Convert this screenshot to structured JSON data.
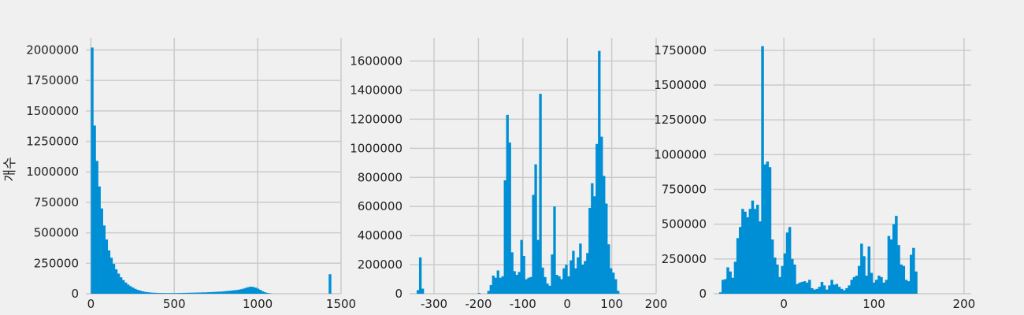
{
  "chart_data": [
    {
      "type": "bar",
      "title": "",
      "xlabel": "",
      "ylabel": "개수",
      "xlim": [
        -30,
        1500
      ],
      "ylim": [
        0,
        2100000
      ],
      "xticks": [
        0,
        500,
        1000,
        1500
      ],
      "yticks": [
        0,
        250000,
        500000,
        750000,
        1000000,
        1250000,
        1500000,
        1750000,
        2000000
      ],
      "grid": true,
      "bin_start": 0,
      "bin_width": 14.4,
      "values": [
        2020000,
        1380000,
        1090000,
        880000,
        700000,
        560000,
        445000,
        355000,
        295000,
        245000,
        200000,
        165000,
        135000,
        112000,
        92000,
        75000,
        62000,
        50000,
        40000,
        32000,
        26000,
        20000,
        16000,
        13000,
        11000,
        9000,
        8000,
        7000,
        6000,
        5500,
        5000,
        5000,
        5000,
        5000,
        5000,
        5000,
        6000,
        6000,
        7000,
        7000,
        8000,
        8000,
        9000,
        9000,
        10000,
        10000,
        11000,
        11000,
        12000,
        13000,
        14000,
        15000,
        16000,
        17000,
        18000,
        20000,
        22000,
        24000,
        26000,
        28000,
        30000,
        33000,
        37000,
        42000,
        48000,
        54000,
        58000,
        56000,
        50000,
        42000,
        32000,
        20000,
        12000,
        6000,
        3000,
        0,
        0,
        0,
        0,
        0,
        0,
        0,
        0,
        0,
        0,
        0,
        0,
        0,
        0,
        0,
        0,
        0,
        0,
        0,
        0,
        0,
        0,
        0,
        0,
        160000
      ]
    },
    {
      "type": "bar",
      "title": "",
      "xlabel": "",
      "ylabel": "",
      "xlim": [
        -355,
        200
      ],
      "ylim": [
        0,
        1760000
      ],
      "xticks": [
        -300,
        -200,
        -100,
        0,
        100,
        200
      ],
      "yticks": [
        0,
        200000,
        400000,
        600000,
        800000,
        1000000,
        1200000,
        1400000,
        1600000
      ],
      "grid": true,
      "bin_start": -355,
      "bin_width": 5.3,
      "values": [
        0,
        0,
        0,
        25000,
        250000,
        35000,
        0,
        0,
        0,
        0,
        0,
        0,
        0,
        0,
        0,
        0,
        0,
        0,
        0,
        0,
        0,
        0,
        0,
        0,
        0,
        0,
        0,
        0,
        0,
        5000,
        0,
        0,
        0,
        20000,
        60000,
        125000,
        110000,
        160000,
        110000,
        120000,
        780000,
        1230000,
        1040000,
        285000,
        155000,
        130000,
        150000,
        370000,
        260000,
        100000,
        110000,
        115000,
        680000,
        890000,
        370000,
        1375000,
        180000,
        115000,
        70000,
        55000,
        270000,
        600000,
        130000,
        120000,
        100000,
        175000,
        200000,
        120000,
        230000,
        295000,
        175000,
        250000,
        345000,
        200000,
        225000,
        280000,
        590000,
        760000,
        670000,
        1030000,
        1670000,
        1080000,
        810000,
        620000,
        340000,
        175000,
        145000,
        100000,
        20000,
        0
      ]
    },
    {
      "type": "bar",
      "title": "",
      "xlabel": "",
      "ylabel": "",
      "xlim": [
        -78,
        208
      ],
      "ylim": [
        0,
        1840000
      ],
      "xticks": [
        0,
        100,
        200
      ],
      "yticks": [
        0,
        250000,
        500000,
        750000,
        1000000,
        1250000,
        1500000,
        1750000
      ],
      "grid": true,
      "bin_start": -72,
      "bin_width": 2.75,
      "values": [
        10000,
        100000,
        105000,
        190000,
        160000,
        115000,
        230000,
        400000,
        480000,
        610000,
        590000,
        550000,
        610000,
        670000,
        610000,
        640000,
        520000,
        1780000,
        930000,
        950000,
        910000,
        390000,
        260000,
        210000,
        120000,
        200000,
        290000,
        440000,
        480000,
        250000,
        210000,
        70000,
        80000,
        85000,
        90000,
        80000,
        100000,
        40000,
        30000,
        35000,
        50000,
        85000,
        60000,
        30000,
        60000,
        100000,
        65000,
        70000,
        50000,
        35000,
        25000,
        40000,
        60000,
        100000,
        120000,
        130000,
        200000,
        360000,
        270000,
        130000,
        340000,
        150000,
        80000,
        100000,
        130000,
        120000,
        80000,
        100000,
        415000,
        390000,
        500000,
        560000,
        350000,
        210000,
        200000,
        100000,
        90000,
        280000,
        330000,
        160000
      ]
    }
  ]
}
